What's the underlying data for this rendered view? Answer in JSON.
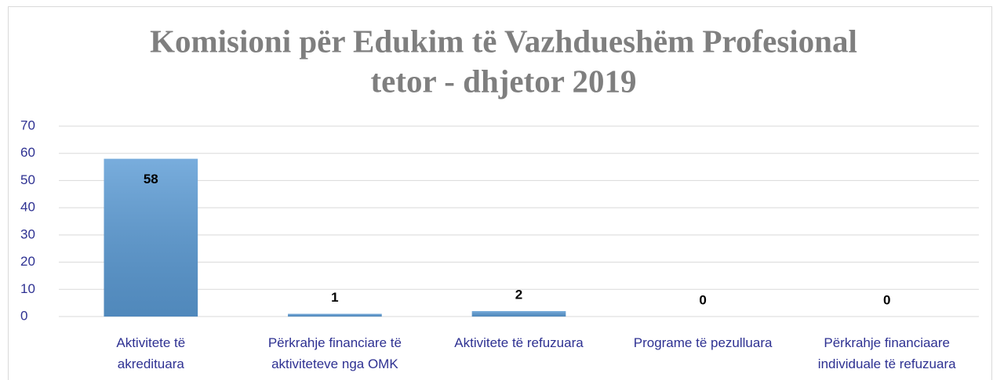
{
  "chart_data": {
    "type": "bar",
    "title": [
      "Komisioni për Edukim të Vazhdueshëm Profesional",
      "tetor - dhjetor 2019"
    ],
    "categories": [
      "Aktivitete të akredituara",
      "Përkrahje financiare të aktiviteteve nga OMK",
      "Aktivitete të refuzuara",
      "Programe të pezulluara",
      "Përkrahje financiaare individuale të refuzuara"
    ],
    "values": [
      58,
      1,
      2,
      0,
      0
    ],
    "color": "#5b9bd5",
    "ylim": [
      0,
      70
    ],
    "yticks": [
      0,
      10,
      20,
      30,
      40,
      50,
      60,
      70
    ],
    "grid": true
  }
}
